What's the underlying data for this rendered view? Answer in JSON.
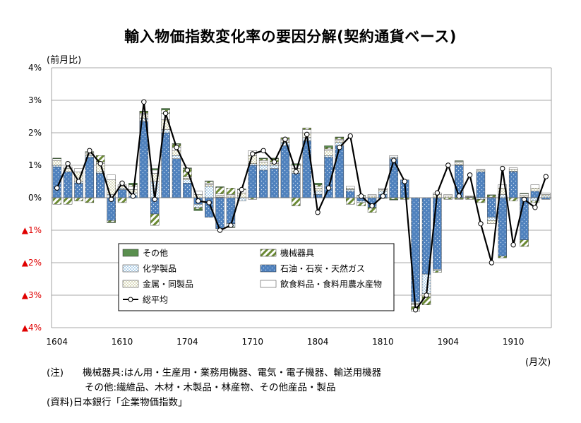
{
  "chart_data": {
    "type": "bar",
    "title": "輸入物価指数変化率の要因分解(契約通貨ベース)",
    "y_unit_label": "(前月比)",
    "x_unit_label": "(月次)",
    "ylim": [
      -4,
      4
    ],
    "y_ticks": [
      {
        "value": 4,
        "label": "4%"
      },
      {
        "value": 3,
        "label": "3%"
      },
      {
        "value": 2,
        "label": "2%"
      },
      {
        "value": 1,
        "label": "1%"
      },
      {
        "value": 0,
        "label": "0%"
      },
      {
        "value": -1,
        "label": "▲1%"
      },
      {
        "value": -2,
        "label": "▲2%"
      },
      {
        "value": -3,
        "label": "▲3%"
      },
      {
        "value": -4,
        "label": "▲4%"
      }
    ],
    "grid": true,
    "legend_position": "center-left",
    "x_tick_labels": [
      {
        "index": 0,
        "label": "1604"
      },
      {
        "index": 6,
        "label": "1610"
      },
      {
        "index": 12,
        "label": "1704"
      },
      {
        "index": 18,
        "label": "1710"
      },
      {
        "index": 24,
        "label": "1804"
      },
      {
        "index": 30,
        "label": "1810"
      },
      {
        "index": 36,
        "label": "1904"
      },
      {
        "index": 42,
        "label": "1910"
      }
    ],
    "categories": [
      "1604",
      "1605",
      "1606",
      "1607",
      "1608",
      "1609",
      "1610",
      "1611",
      "1612",
      "1701",
      "1702",
      "1703",
      "1704",
      "1705",
      "1706",
      "1707",
      "1708",
      "1709",
      "1710",
      "1711",
      "1712",
      "1801",
      "1802",
      "1803",
      "1804",
      "1805",
      "1806",
      "1807",
      "1808",
      "1809",
      "1810",
      "1811",
      "1812",
      "1901",
      "1902",
      "1903",
      "1904",
      "1905",
      "1906",
      "1907",
      "1908",
      "1909",
      "1910",
      "1911",
      "1912",
      "2001"
    ],
    "colors": {
      "other": "#5a8f4e",
      "machinery": "#5f7f2f",
      "chemical": "#9ec9e8",
      "oil": "#4f81bd",
      "metal": "#c8c88c",
      "food": "#ffffff",
      "average_line": "#000000"
    },
    "series": [
      {
        "key": "other",
        "name": "その他",
        "values": [
          0.02,
          0.0,
          0.0,
          0.02,
          0.0,
          -0.02,
          0.0,
          0.05,
          0.02,
          0.05,
          0.05,
          0.02,
          0.02,
          -0.05,
          0.02,
          0.02,
          -0.02,
          0.02,
          0.0,
          0.02,
          0.02,
          0.0,
          0.05,
          0.0,
          0.05,
          0.05,
          0.02,
          0.0,
          0.02,
          0.0,
          -0.02,
          -0.02,
          0.0,
          0.0,
          0.0,
          0.0,
          0.0,
          0.02,
          0.0,
          0.0,
          0.02,
          0.0,
          0.0,
          0.02,
          0.0,
          0.0
        ]
      },
      {
        "key": "machinery",
        "name": "機械器具",
        "values": [
          -0.2,
          -0.2,
          -0.1,
          -0.15,
          0.2,
          -0.05,
          -0.15,
          0.05,
          0.05,
          -0.35,
          0.1,
          0.1,
          0.25,
          -0.05,
          0.05,
          0.2,
          0.2,
          0.0,
          -0.05,
          0.05,
          0.1,
          0.05,
          -0.25,
          0.05,
          0.05,
          0.05,
          0.05,
          -0.2,
          -0.1,
          -0.15,
          0.0,
          -0.05,
          -0.05,
          -0.15,
          -0.25,
          -0.05,
          -0.05,
          -0.05,
          -0.05,
          -0.1,
          0.05,
          -0.05,
          -0.1,
          -0.2,
          -0.05,
          0.0
        ]
      },
      {
        "key": "chemical",
        "name": "化学製品",
        "values": [
          0.05,
          0.0,
          0.05,
          0.05,
          0.05,
          0.1,
          0.05,
          0.1,
          0.1,
          0.5,
          0.1,
          0.1,
          0.1,
          -0.1,
          0.35,
          0.02,
          -0.1,
          -0.1,
          0.05,
          0.15,
          0.1,
          0.1,
          0.05,
          0.1,
          0.1,
          0.05,
          0.1,
          0.05,
          -0.05,
          0.0,
          0.1,
          0.05,
          0.0,
          -0.05,
          -0.6,
          -0.05,
          0.0,
          0.02,
          0.02,
          -0.05,
          -0.1,
          0.1,
          0.02,
          0.02,
          -0.1,
          0.05
        ]
      },
      {
        "key": "oil",
        "name": "石油・石炭・天然ガス",
        "values": [
          0.95,
          0.8,
          0.45,
          1.25,
          0.75,
          -0.7,
          0.25,
          0.05,
          2.35,
          -0.5,
          2.0,
          1.2,
          0.45,
          -0.2,
          -0.6,
          -0.95,
          -0.8,
          0.0,
          1.0,
          0.85,
          0.9,
          1.6,
          0.75,
          1.75,
          0.1,
          1.25,
          1.6,
          0.2,
          -0.1,
          -0.3,
          0.1,
          1.2,
          0.55,
          -3.2,
          -2.35,
          -2.2,
          0.0,
          1.0,
          0.0,
          0.8,
          -0.6,
          -1.8,
          0.8,
          -1.3,
          0.2,
          -0.05
        ]
      },
      {
        "key": "metal",
        "name": "金属・同製品",
        "values": [
          0.15,
          0.1,
          0.3,
          0.05,
          0.25,
          0.45,
          0.05,
          0.1,
          0.1,
          0.25,
          0.3,
          0.15,
          0.05,
          0.1,
          0.05,
          0.05,
          0.05,
          0.15,
          0.25,
          0.1,
          0.05,
          0.05,
          0.1,
          0.15,
          0.1,
          0.15,
          0.05,
          0.05,
          0.0,
          0.05,
          0.05,
          0.0,
          0.0,
          -0.05,
          -0.1,
          0.1,
          0.05,
          0.05,
          0.02,
          0.05,
          -0.1,
          0.2,
          0.05,
          0.05,
          0.1,
          0.05
        ]
      },
      {
        "key": "food",
        "name": "飲食料品・食料用農水産物",
        "values": [
          0.05,
          0.05,
          0.1,
          0.05,
          0.05,
          0.15,
          0.05,
          0.1,
          0.05,
          0.1,
          0.2,
          0.1,
          0.05,
          0.1,
          0.05,
          0.05,
          0.05,
          0.1,
          0.15,
          0.05,
          0.05,
          0.05,
          0.1,
          0.1,
          0.05,
          0.05,
          0.05,
          0.05,
          0.05,
          0.05,
          0.05,
          0.05,
          0.0,
          -0.05,
          0.0,
          0.05,
          0.05,
          0.05,
          0.02,
          0.02,
          0.02,
          0.1,
          0.05,
          0.05,
          0.1,
          0.05
        ]
      },
      {
        "key": "average",
        "name": "総平均",
        "values": [
          0.3,
          1.05,
          0.5,
          1.45,
          1.05,
          -0.05,
          0.45,
          0.05,
          2.95,
          -0.05,
          2.6,
          1.55,
          0.85,
          -0.1,
          -0.15,
          -1.0,
          -0.85,
          0.25,
          1.35,
          1.45,
          1.1,
          1.8,
          0.8,
          1.95,
          -0.45,
          0.3,
          1.55,
          1.9,
          0.05,
          -0.25,
          0.05,
          1.15,
          0.5,
          -3.45,
          -3.0,
          0.15,
          1.0,
          0.05,
          0.7,
          -0.8,
          -2.0,
          0.9,
          -1.45,
          -0.05,
          -0.3,
          0.65
        ]
      }
    ]
  },
  "notes": [
    "(注)　　機械器具:はん用・生産用・業務用機器、電気・電子機器、輸送用機器",
    "　　　　その他:繊維品、木材・木製品・林産物、その他産品・製品",
    "(資料)日本銀行「企業物価指数」"
  ]
}
